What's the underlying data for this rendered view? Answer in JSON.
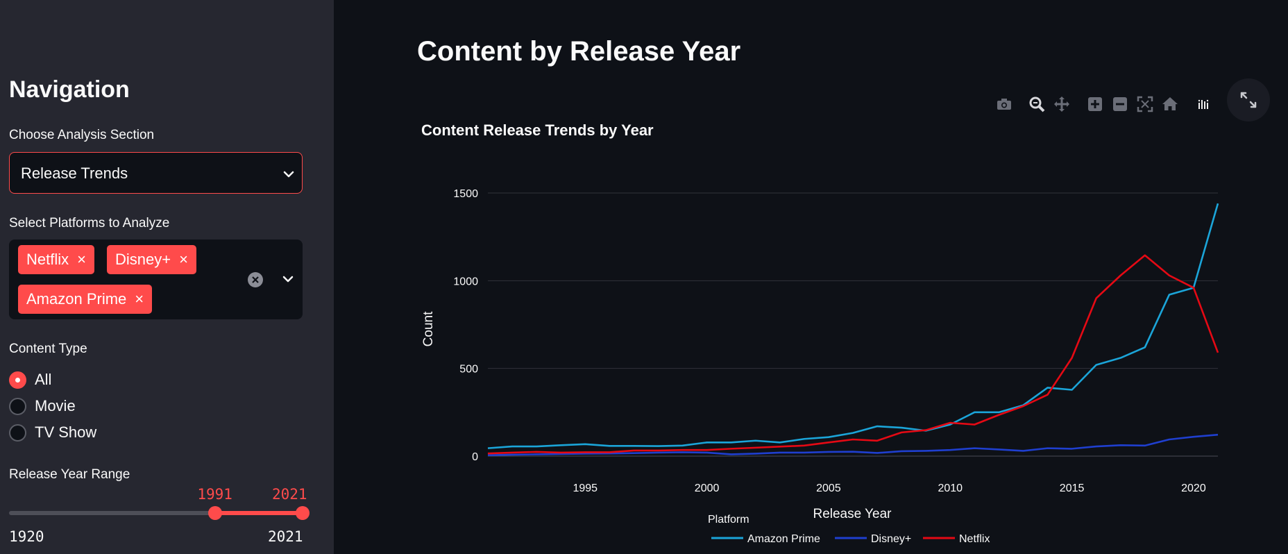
{
  "sidebar": {
    "title": "Navigation",
    "section_label": "Choose Analysis Section",
    "section_value": "Release Trends",
    "platforms_label": "Select Platforms to Analyze",
    "platforms": [
      "Netflix",
      "Disney+",
      "Amazon Prime"
    ],
    "tag_remove": "×",
    "content_type_label": "Content Type",
    "content_types": [
      "All",
      "Movie",
      "TV Show"
    ],
    "content_type_selected": "All",
    "year_range_label": "Release Year Range",
    "year_range": {
      "min": 1920,
      "max": 2021,
      "low": 1991,
      "high": 2021,
      "low_label": "1991",
      "high_label": "2021",
      "min_label": "1920",
      "max_label": "2021"
    }
  },
  "main": {
    "title": "Content by Release Year",
    "modebar_icons": [
      "camera-icon",
      "zoom-icon",
      "pan-icon",
      "zoom-in-icon",
      "zoom-out-icon",
      "autoscale-icon",
      "home-icon",
      "plotly-logo-icon"
    ],
    "expand_icon": "fullscreen-icon"
  },
  "colors": {
    "accent": "#ff4b4b",
    "amazon": "#1ba5d9",
    "disney": "#1f3fcf",
    "netflix": "#e50914"
  },
  "chart_data": {
    "type": "line",
    "title": "Content Release Trends by Year",
    "xlabel": "Release Year",
    "ylabel": "Count",
    "xlim": [
      1991,
      2021
    ],
    "ylim": [
      0,
      1500
    ],
    "x_ticks": [
      1995,
      2000,
      2005,
      2010,
      2015,
      2020
    ],
    "y_ticks": [
      0,
      500,
      1000,
      1500
    ],
    "legend_title": "Platform",
    "legend_position": "bottom-center",
    "x": [
      1991,
      1992,
      1993,
      1994,
      1995,
      1996,
      1997,
      1998,
      1999,
      2000,
      2001,
      2002,
      2003,
      2004,
      2005,
      2006,
      2007,
      2008,
      2009,
      2010,
      2011,
      2012,
      2013,
      2014,
      2015,
      2016,
      2017,
      2018,
      2019,
      2020,
      2021
    ],
    "series": [
      {
        "name": "Amazon Prime",
        "color": "#1ba5d9",
        "values": [
          45,
          55,
          55,
          62,
          68,
          58,
          58,
          57,
          60,
          78,
          78,
          88,
          78,
          98,
          108,
          132,
          170,
          162,
          145,
          180,
          250,
          250,
          290,
          390,
          378,
          520,
          560,
          620,
          920,
          960,
          1440
        ]
      },
      {
        "name": "Disney+",
        "color": "#1f3fcf",
        "values": [
          5,
          8,
          10,
          12,
          14,
          15,
          17,
          20,
          22,
          20,
          10,
          14,
          20,
          20,
          24,
          25,
          18,
          28,
          30,
          35,
          45,
          38,
          30,
          45,
          42,
          55,
          62,
          60,
          95,
          110,
          122
        ]
      },
      {
        "name": "Netflix",
        "color": "#e50914",
        "values": [
          15,
          20,
          24,
          20,
          22,
          22,
          32,
          32,
          35,
          35,
          42,
          48,
          54,
          60,
          78,
          95,
          88,
          135,
          148,
          190,
          180,
          235,
          285,
          350,
          560,
          900,
          1030,
          1145,
          1030,
          960,
          590
        ]
      }
    ]
  }
}
